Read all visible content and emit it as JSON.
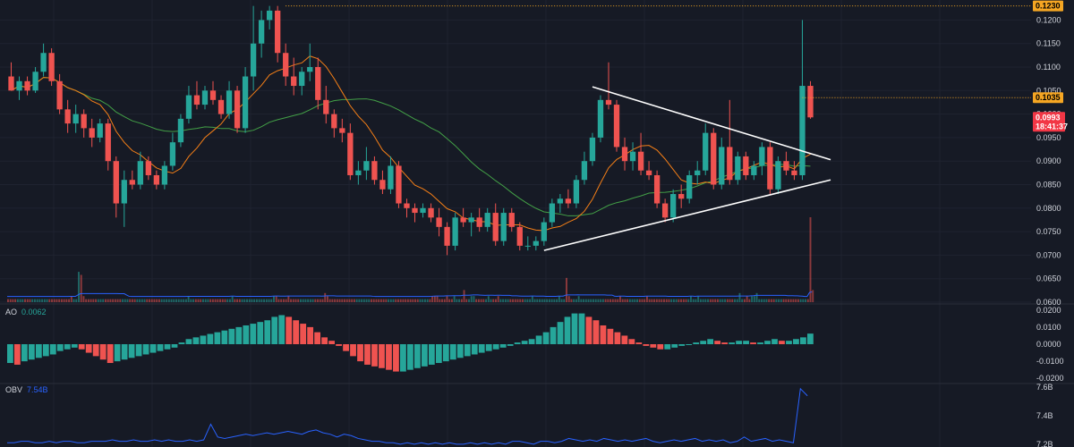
{
  "panes": {
    "ao": {
      "label": "AO",
      "value_text": "0.0062"
    },
    "obv": {
      "label": "OBV",
      "value_text": "7.54B"
    }
  },
  "price_tags": {
    "high_line": "0.1230",
    "prev_level": "0.1035",
    "last_price": "0.0993",
    "countdown": "18:41:37"
  },
  "colors": {
    "background": "#161a25",
    "grid": "#1f2330",
    "up": "#26a69a",
    "down": "#ef5350",
    "ma_fast": "#f57f17",
    "ma_slow": "#43a047",
    "trendline": "#ffffff",
    "obv": "#2962ff",
    "volume_ma": "#2962ff",
    "high_tag": "#f5a623",
    "last_tag": "#f23645"
  },
  "chart_data": [
    {
      "type": "candlestick",
      "title": "",
      "y_axis_ticks": [
        "0.1200",
        "0.1150",
        "0.1100",
        "0.1050",
        "0.1000",
        "0.0950",
        "0.0900",
        "0.0850",
        "0.0800",
        "0.0750",
        "0.0700",
        "0.0650",
        "0.0600"
      ],
      "ylim": [
        0.06,
        0.1235
      ],
      "grid": true,
      "candles": [
        {
          "o": 0.108,
          "h": 0.111,
          "l": 0.105,
          "c": 0.105
        },
        {
          "o": 0.105,
          "h": 0.108,
          "l": 0.103,
          "c": 0.107
        },
        {
          "o": 0.107,
          "h": 0.108,
          "l": 0.104,
          "c": 0.105
        },
        {
          "o": 0.105,
          "h": 0.11,
          "l": 0.1045,
          "c": 0.109
        },
        {
          "o": 0.109,
          "h": 0.115,
          "l": 0.108,
          "c": 0.113
        },
        {
          "o": 0.113,
          "h": 0.114,
          "l": 0.106,
          "c": 0.107
        },
        {
          "o": 0.107,
          "h": 0.1085,
          "l": 0.1,
          "c": 0.101
        },
        {
          "o": 0.101,
          "h": 0.103,
          "l": 0.096,
          "c": 0.098
        },
        {
          "o": 0.098,
          "h": 0.102,
          "l": 0.096,
          "c": 0.1
        },
        {
          "o": 0.1,
          "h": 0.101,
          "l": 0.095,
          "c": 0.097
        },
        {
          "o": 0.097,
          "h": 0.099,
          "l": 0.093,
          "c": 0.095
        },
        {
          "o": 0.095,
          "h": 0.099,
          "l": 0.094,
          "c": 0.098
        },
        {
          "o": 0.098,
          "h": 0.099,
          "l": 0.088,
          "c": 0.09
        },
        {
          "o": 0.09,
          "h": 0.091,
          "l": 0.078,
          "c": 0.081
        },
        {
          "o": 0.081,
          "h": 0.088,
          "l": 0.076,
          "c": 0.086
        },
        {
          "o": 0.086,
          "h": 0.088,
          "l": 0.084,
          "c": 0.085
        },
        {
          "o": 0.085,
          "h": 0.092,
          "l": 0.084,
          "c": 0.09
        },
        {
          "o": 0.09,
          "h": 0.091,
          "l": 0.086,
          "c": 0.087
        },
        {
          "o": 0.087,
          "h": 0.088,
          "l": 0.084,
          "c": 0.085
        },
        {
          "o": 0.085,
          "h": 0.09,
          "l": 0.084,
          "c": 0.089
        },
        {
          "o": 0.089,
          "h": 0.096,
          "l": 0.088,
          "c": 0.094
        },
        {
          "o": 0.094,
          "h": 0.1,
          "l": 0.093,
          "c": 0.099
        },
        {
          "o": 0.099,
          "h": 0.106,
          "l": 0.098,
          "c": 0.104
        },
        {
          "o": 0.104,
          "h": 0.107,
          "l": 0.101,
          "c": 0.102
        },
        {
          "o": 0.102,
          "h": 0.106,
          "l": 0.101,
          "c": 0.105
        },
        {
          "o": 0.105,
          "h": 0.107,
          "l": 0.102,
          "c": 0.103
        },
        {
          "o": 0.103,
          "h": 0.104,
          "l": 0.099,
          "c": 0.1
        },
        {
          "o": 0.1,
          "h": 0.107,
          "l": 0.099,
          "c": 0.105
        },
        {
          "o": 0.105,
          "h": 0.106,
          "l": 0.096,
          "c": 0.097
        },
        {
          "o": 0.097,
          "h": 0.11,
          "l": 0.096,
          "c": 0.108
        },
        {
          "o": 0.108,
          "h": 0.123,
          "l": 0.105,
          "c": 0.115
        },
        {
          "o": 0.115,
          "h": 0.122,
          "l": 0.112,
          "c": 0.12
        },
        {
          "o": 0.12,
          "h": 0.123,
          "l": 0.118,
          "c": 0.122
        },
        {
          "o": 0.122,
          "h": 0.123,
          "l": 0.111,
          "c": 0.113
        },
        {
          "o": 0.113,
          "h": 0.115,
          "l": 0.106,
          "c": 0.108
        },
        {
          "o": 0.108,
          "h": 0.112,
          "l": 0.104,
          "c": 0.106
        },
        {
          "o": 0.106,
          "h": 0.11,
          "l": 0.104,
          "c": 0.109
        },
        {
          "o": 0.109,
          "h": 0.115,
          "l": 0.107,
          "c": 0.11
        },
        {
          "o": 0.11,
          "h": 0.112,
          "l": 0.101,
          "c": 0.103
        },
        {
          "o": 0.103,
          "h": 0.106,
          "l": 0.098,
          "c": 0.1
        },
        {
          "o": 0.1,
          "h": 0.101,
          "l": 0.095,
          "c": 0.097
        },
        {
          "o": 0.097,
          "h": 0.099,
          "l": 0.094,
          "c": 0.096
        },
        {
          "o": 0.096,
          "h": 0.098,
          "l": 0.086,
          "c": 0.087
        },
        {
          "o": 0.087,
          "h": 0.09,
          "l": 0.085,
          "c": 0.088
        },
        {
          "o": 0.088,
          "h": 0.093,
          "l": 0.086,
          "c": 0.09
        },
        {
          "o": 0.09,
          "h": 0.091,
          "l": 0.085,
          "c": 0.086
        },
        {
          "o": 0.086,
          "h": 0.088,
          "l": 0.083,
          "c": 0.084
        },
        {
          "o": 0.084,
          "h": 0.091,
          "l": 0.083,
          "c": 0.089
        },
        {
          "o": 0.089,
          "h": 0.09,
          "l": 0.08,
          "c": 0.081
        },
        {
          "o": 0.081,
          "h": 0.082,
          "l": 0.078,
          "c": 0.08
        },
        {
          "o": 0.08,
          "h": 0.081,
          "l": 0.077,
          "c": 0.079
        },
        {
          "o": 0.079,
          "h": 0.081,
          "l": 0.078,
          "c": 0.08
        },
        {
          "o": 0.08,
          "h": 0.081,
          "l": 0.077,
          "c": 0.078
        },
        {
          "o": 0.078,
          "h": 0.08,
          "l": 0.074,
          "c": 0.076
        },
        {
          "o": 0.076,
          "h": 0.077,
          "l": 0.07,
          "c": 0.072
        },
        {
          "o": 0.072,
          "h": 0.079,
          "l": 0.071,
          "c": 0.078
        },
        {
          "o": 0.078,
          "h": 0.08,
          "l": 0.076,
          "c": 0.077
        },
        {
          "o": 0.077,
          "h": 0.079,
          "l": 0.074,
          "c": 0.078
        },
        {
          "o": 0.078,
          "h": 0.08,
          "l": 0.075,
          "c": 0.076
        },
        {
          "o": 0.076,
          "h": 0.08,
          "l": 0.075,
          "c": 0.079
        },
        {
          "o": 0.079,
          "h": 0.081,
          "l": 0.072,
          "c": 0.073
        },
        {
          "o": 0.073,
          "h": 0.08,
          "l": 0.072,
          "c": 0.079
        },
        {
          "o": 0.079,
          "h": 0.08,
          "l": 0.075,
          "c": 0.076
        },
        {
          "o": 0.076,
          "h": 0.077,
          "l": 0.071,
          "c": 0.072
        },
        {
          "o": 0.072,
          "h": 0.074,
          "l": 0.071,
          "c": 0.072
        },
        {
          "o": 0.072,
          "h": 0.074,
          "l": 0.071,
          "c": 0.073
        },
        {
          "o": 0.073,
          "h": 0.078,
          "l": 0.072,
          "c": 0.077
        },
        {
          "o": 0.077,
          "h": 0.082,
          "l": 0.076,
          "c": 0.081
        },
        {
          "o": 0.081,
          "h": 0.083,
          "l": 0.079,
          "c": 0.082
        },
        {
          "o": 0.082,
          "h": 0.084,
          "l": 0.08,
          "c": 0.081
        },
        {
          "o": 0.081,
          "h": 0.087,
          "l": 0.08,
          "c": 0.086
        },
        {
          "o": 0.086,
          "h": 0.092,
          "l": 0.085,
          "c": 0.09
        },
        {
          "o": 0.09,
          "h": 0.096,
          "l": 0.089,
          "c": 0.095
        },
        {
          "o": 0.095,
          "h": 0.104,
          "l": 0.094,
          "c": 0.103
        },
        {
          "o": 0.103,
          "h": 0.111,
          "l": 0.101,
          "c": 0.102
        },
        {
          "o": 0.102,
          "h": 0.103,
          "l": 0.092,
          "c": 0.093
        },
        {
          "o": 0.093,
          "h": 0.095,
          "l": 0.088,
          "c": 0.09
        },
        {
          "o": 0.09,
          "h": 0.094,
          "l": 0.088,
          "c": 0.092
        },
        {
          "o": 0.092,
          "h": 0.096,
          "l": 0.087,
          "c": 0.088
        },
        {
          "o": 0.088,
          "h": 0.09,
          "l": 0.086,
          "c": 0.087
        },
        {
          "o": 0.087,
          "h": 0.088,
          "l": 0.08,
          "c": 0.081
        },
        {
          "o": 0.081,
          "h": 0.082,
          "l": 0.077,
          "c": 0.078
        },
        {
          "o": 0.078,
          "h": 0.084,
          "l": 0.077,
          "c": 0.083
        },
        {
          "o": 0.083,
          "h": 0.085,
          "l": 0.08,
          "c": 0.082
        },
        {
          "o": 0.082,
          "h": 0.088,
          "l": 0.081,
          "c": 0.087
        },
        {
          "o": 0.087,
          "h": 0.09,
          "l": 0.085,
          "c": 0.088
        },
        {
          "o": 0.088,
          "h": 0.098,
          "l": 0.087,
          "c": 0.096
        },
        {
          "o": 0.096,
          "h": 0.097,
          "l": 0.084,
          "c": 0.085
        },
        {
          "o": 0.085,
          "h": 0.095,
          "l": 0.084,
          "c": 0.093
        },
        {
          "o": 0.093,
          "h": 0.103,
          "l": 0.085,
          "c": 0.086
        },
        {
          "o": 0.086,
          "h": 0.092,
          "l": 0.085,
          "c": 0.091
        },
        {
          "o": 0.091,
          "h": 0.092,
          "l": 0.086,
          "c": 0.087
        },
        {
          "o": 0.087,
          "h": 0.09,
          "l": 0.086,
          "c": 0.089
        },
        {
          "o": 0.089,
          "h": 0.094,
          "l": 0.087,
          "c": 0.093
        },
        {
          "o": 0.093,
          "h": 0.094,
          "l": 0.083,
          "c": 0.084
        },
        {
          "o": 0.084,
          "h": 0.091,
          "l": 0.083,
          "c": 0.09
        },
        {
          "o": 0.09,
          "h": 0.092,
          "l": 0.087,
          "c": 0.088
        },
        {
          "o": 0.088,
          "h": 0.09,
          "l": 0.086,
          "c": 0.087
        },
        {
          "o": 0.087,
          "h": 0.12,
          "l": 0.086,
          "c": 0.106
        },
        {
          "o": 0.106,
          "h": 0.107,
          "l": 0.099,
          "c": 0.0993
        }
      ],
      "volume": [
        1,
        1,
        1,
        1,
        1,
        1,
        1,
        1,
        1,
        1,
        1,
        1,
        1,
        1,
        1,
        1,
        1,
        1,
        1,
        1,
        1,
        1,
        1,
        1,
        1,
        1,
        2,
        1,
        1,
        10,
        9,
        2,
        1,
        1,
        1,
        1,
        1,
        1,
        1,
        1,
        1,
        1,
        1,
        1,
        1,
        1,
        1,
        1,
        1,
        1,
        1,
        1,
        1,
        1,
        1,
        1,
        1,
        1,
        1,
        1,
        1,
        1,
        1,
        1,
        1,
        1,
        1,
        1,
        1,
        1,
        1,
        1,
        1,
        1,
        2,
        1,
        1,
        1,
        1,
        1,
        1,
        1,
        1,
        1,
        1,
        1,
        1,
        1,
        1,
        1,
        1,
        1,
        2,
        1,
        1,
        1,
        1,
        1,
        1,
        1,
        1,
        1,
        1,
        1,
        1,
        1,
        1,
        1,
        1,
        2,
        2,
        1,
        1,
        1,
        1,
        2,
        1,
        1,
        1,
        1,
        1,
        1,
        1,
        1,
        1,
        1,
        1,
        1,
        1,
        1,
        3,
        2,
        1,
        1,
        1,
        1,
        1,
        1,
        1,
        1,
        1,
        1,
        1,
        1,
        1,
        1,
        1,
        1,
        1,
        1,
        1,
        1,
        1,
        1,
        1,
        1,
        1,
        1,
        1,
        1,
        1,
        1,
        1,
        1,
        1,
        1,
        1,
        1,
        1,
        1,
        1,
        1,
        1,
        1,
        2,
        2,
        2,
        1,
        1,
        1,
        2,
        1,
        1,
        2,
        1,
        1,
        1,
        4,
        1,
        1,
        2,
        2,
        1,
        1,
        1,
        1,
        1,
        2,
        1,
        1,
        1,
        2,
        1,
        1,
        1,
        1,
        1,
        1,
        1,
        1,
        1,
        1,
        1,
        1,
        1,
        2,
        1,
        1,
        1,
        1,
        1,
        1,
        1,
        1,
        1,
        1,
        2,
        1,
        1,
        8,
        2,
        1,
        1,
        1,
        2,
        1,
        1,
        1,
        1,
        1,
        1,
        1,
        1,
        1,
        1,
        1,
        1,
        1,
        1,
        1,
        1,
        2,
        1,
        1,
        1,
        1,
        1,
        1,
        1,
        1,
        1,
        1,
        2,
        1,
        1,
        1,
        1,
        1,
        1,
        1,
        1,
        1,
        1,
        1,
        1,
        1,
        1,
        1,
        1,
        1,
        2,
        1,
        1,
        2,
        1,
        1,
        1,
        1,
        1,
        1,
        1,
        1,
        1,
        1,
        1,
        1,
        1,
        1,
        1,
        1,
        3,
        1,
        1,
        2,
        1,
        2,
        2,
        3,
        1,
        1,
        1,
        1,
        1,
        1,
        1,
        1,
        1,
        1,
        1,
        1,
        1,
        1,
        1,
        1,
        1,
        1,
        1,
        1,
        1,
        28,
        4
      ],
      "annotations": [
        "0.1230 high line",
        "0.1035 level",
        "0.0993 last price",
        "18:41:37 countdown",
        "symmetrical triangle trendlines"
      ]
    },
    {
      "type": "bar",
      "title": "AO",
      "y_axis_ticks": [
        "0.0200",
        "0.0100",
        "0.0000",
        "-0.0100",
        "-0.0200"
      ],
      "ylim": [
        -0.0225,
        0.0225
      ],
      "values": [
        -0.011,
        -0.012,
        -0.01,
        -0.009,
        -0.008,
        -0.007,
        -0.006,
        -0.004,
        -0.003,
        -0.002,
        -0.003,
        -0.005,
        -0.007,
        -0.009,
        -0.011,
        -0.01,
        -0.009,
        -0.008,
        -0.007,
        -0.006,
        -0.005,
        -0.004,
        -0.003,
        -0.002,
        0.001,
        0.003,
        0.004,
        0.005,
        0.006,
        0.007,
        0.008,
        0.009,
        0.01,
        0.011,
        0.012,
        0.013,
        0.014,
        0.016,
        0.017,
        0.016,
        0.014,
        0.012,
        0.01,
        0.007,
        0.004,
        0.002,
        -0.001,
        -0.004,
        -0.007,
        -0.01,
        -0.012,
        -0.013,
        -0.014,
        -0.015,
        -0.016,
        -0.016,
        -0.015,
        -0.014,
        -0.013,
        -0.012,
        -0.011,
        -0.01,
        -0.009,
        -0.008,
        -0.007,
        -0.006,
        -0.005,
        -0.004,
        -0.003,
        -0.002,
        -0.001,
        0.001,
        0.002,
        0.003,
        0.005,
        0.007,
        0.01,
        0.013,
        0.016,
        0.018,
        0.018,
        0.016,
        0.014,
        0.011,
        0.009,
        0.007,
        0.005,
        0.003,
        0.001,
        -0.001,
        -0.002,
        -0.003,
        -0.003,
        -0.002,
        -0.001,
        0.0,
        0.001,
        0.002,
        0.003,
        0.002,
        0.001,
        0.001,
        0.002,
        0.002,
        0.001,
        0.001,
        0.002,
        0.003,
        0.002,
        0.002,
        0.003,
        0.004,
        0.0062
      ]
    },
    {
      "type": "line",
      "title": "OBV",
      "y_axis_ticks": [
        "7.6B",
        "7.4B",
        "7.2B"
      ],
      "ylim": [
        7.18,
        7.62
      ],
      "values": [
        7.21,
        7.21,
        7.22,
        7.22,
        7.21,
        7.21,
        7.22,
        7.21,
        7.22,
        7.22,
        7.21,
        7.21,
        7.22,
        7.22,
        7.22,
        7.23,
        7.22,
        7.22,
        7.23,
        7.22,
        7.22,
        7.23,
        7.22,
        7.23,
        7.22,
        7.22,
        7.23,
        7.22,
        7.23,
        7.34,
        7.25,
        7.24,
        7.25,
        7.26,
        7.27,
        7.26,
        7.27,
        7.28,
        7.27,
        7.28,
        7.29,
        7.28,
        7.27,
        7.29,
        7.3,
        7.28,
        7.27,
        7.25,
        7.27,
        7.26,
        7.24,
        7.23,
        7.22,
        7.22,
        7.21,
        7.21,
        7.2,
        7.21,
        7.2,
        7.21,
        7.2,
        7.21,
        7.2,
        7.21,
        7.2,
        7.2,
        7.21,
        7.2,
        7.21,
        7.2,
        7.21,
        7.2,
        7.22,
        7.22,
        7.21,
        7.2,
        7.22,
        7.22,
        7.21,
        7.22,
        7.24,
        7.23,
        7.22,
        7.23,
        7.22,
        7.24,
        7.23,
        7.22,
        7.23,
        7.22,
        7.23,
        7.24,
        7.22,
        7.21,
        7.22,
        7.23,
        7.22,
        7.23,
        7.24,
        7.22,
        7.23,
        7.22,
        7.23,
        7.21,
        7.22,
        7.25,
        7.22,
        7.23,
        7.24,
        7.22,
        7.23,
        7.22,
        7.21,
        7.59,
        7.54
      ]
    }
  ]
}
